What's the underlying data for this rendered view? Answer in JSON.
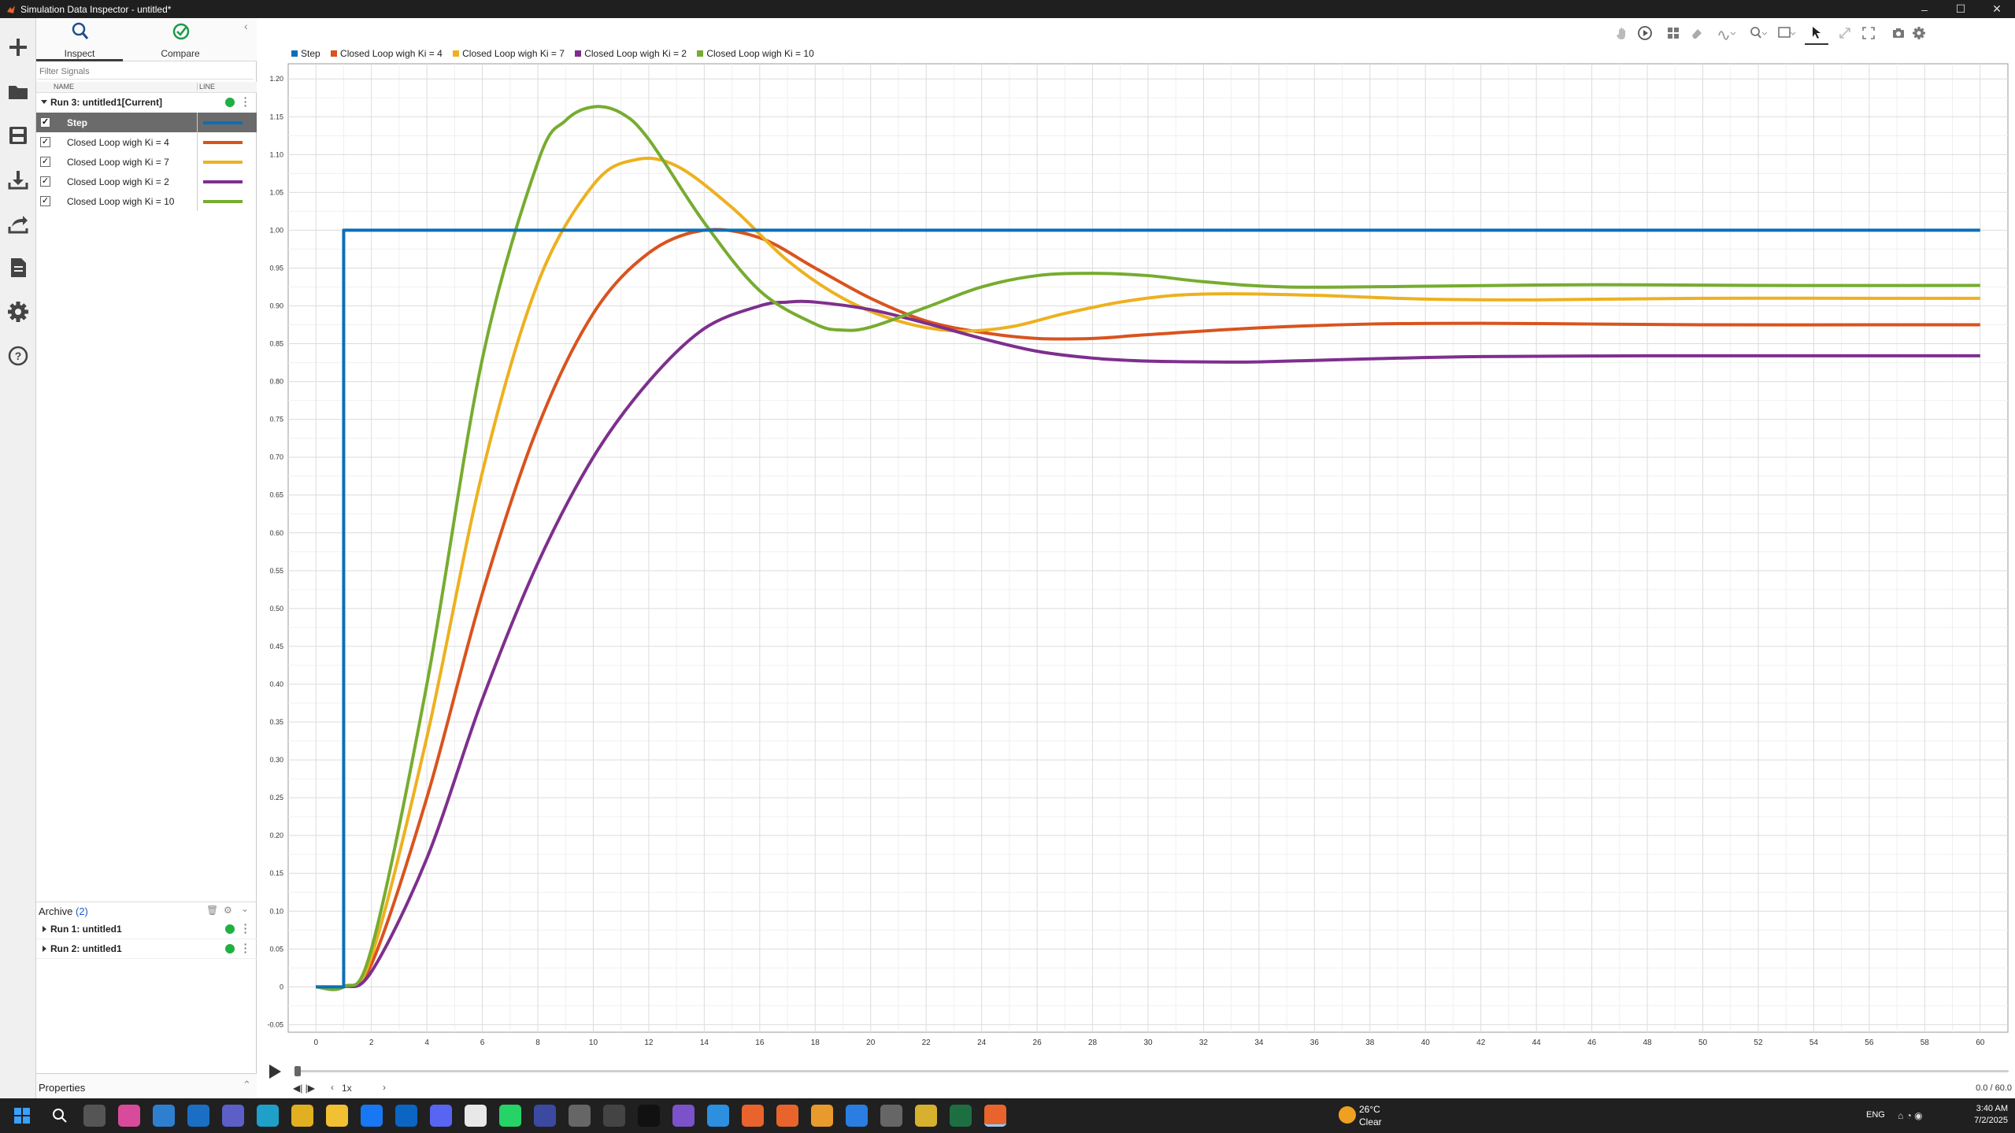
{
  "window": {
    "title": "Simulation Data Inspector - untitled*",
    "controls": [
      "–",
      "☐",
      "✕"
    ]
  },
  "iconbar": [
    "new-icon",
    "open-folder-icon",
    "save-icon",
    "import-icon",
    "export-icon",
    "report-icon",
    "settings-icon",
    "help-icon"
  ],
  "tabs": [
    {
      "label": "Inspect",
      "icon": "search-icon"
    },
    {
      "label": "Compare",
      "icon": "checkmark-circle-icon"
    }
  ],
  "filter_placeholder": "Filter Signals",
  "columns": {
    "name": "NAME",
    "line": "LINE"
  },
  "current_run": {
    "label": "Run 3: untitled1[Current]"
  },
  "signals": [
    {
      "name": "Step",
      "checked": true,
      "color": "#0b6fb8",
      "selected": true
    },
    {
      "name": "Closed Loop wigh Ki = 4",
      "checked": true,
      "color": "#d9531e",
      "selected": false
    },
    {
      "name": "Closed Loop wigh Ki = 7",
      "checked": true,
      "color": "#edb120",
      "selected": false
    },
    {
      "name": "Closed Loop wigh Ki = 2",
      "checked": true,
      "color": "#7e2f8e",
      "selected": false
    },
    {
      "name": "Closed Loop wigh Ki = 10",
      "checked": true,
      "color": "#77ac30",
      "selected": false
    }
  ],
  "archive": {
    "label": "Archive",
    "count": "(2)",
    "runs": [
      "Run 1: untitled1",
      "Run 2: untitled1"
    ]
  },
  "properties_label": "Properties",
  "legend": [
    "Step",
    "Closed Loop wigh Ki = 4",
    "Closed Loop wigh Ki = 7",
    "Closed Loop wigh Ki = 2",
    "Closed Loop wigh Ki = 10"
  ],
  "playback": {
    "speed": "1x",
    "time": "0.0 / 60.0"
  },
  "taskbar": {
    "weather_temp": "26°C",
    "weather_desc": "Clear",
    "language": "ENG",
    "time": "3:40 AM",
    "date": "7/2/2025"
  },
  "chart_data": {
    "type": "line",
    "xlim": [
      -1,
      61
    ],
    "ylim": [
      -0.06,
      1.22
    ],
    "xticks": [
      0,
      2,
      4,
      6,
      8,
      10,
      12,
      14,
      16,
      18,
      20,
      22,
      24,
      26,
      28,
      30,
      32,
      34,
      36,
      38,
      40,
      42,
      44,
      46,
      48,
      50,
      52,
      54,
      56,
      58,
      60
    ],
    "xtick_labels": [
      "0",
      "2",
      "4",
      "6",
      "8",
      "10",
      "12",
      "14",
      "16",
      "18",
      "20",
      "22",
      "24",
      "26",
      "28",
      "30",
      "32",
      "34",
      "36",
      "38",
      "40",
      "42",
      "44",
      "46",
      "48",
      "50",
      "52",
      "54",
      "56",
      "58",
      "60"
    ],
    "yticks": [
      -0.05,
      0,
      0.05,
      0.1,
      0.15,
      0.2,
      0.25,
      0.3,
      0.35,
      0.4,
      0.45,
      0.5,
      0.55,
      0.6,
      0.65,
      0.7,
      0.75,
      0.8,
      0.85,
      0.9,
      0.95,
      1.0,
      1.05,
      1.1,
      1.15,
      1.2
    ],
    "ytick_labels": [
      "-0.05",
      "0",
      "0.05",
      "0.10",
      "0.15",
      "0.20",
      "0.25",
      "0.30",
      "0.35",
      "0.40",
      "0.45",
      "0.50",
      "0.55",
      "0.60",
      "0.65",
      "0.70",
      "0.75",
      "0.80",
      "0.85",
      "0.90",
      "0.95",
      "1.00",
      "1.05",
      "1.10",
      "1.15",
      "1.20"
    ],
    "grid": true,
    "legend_position": "top-left",
    "series": [
      {
        "name": "Step",
        "color": "#0b6fb8",
        "x": [
          0,
          1,
          1,
          60
        ],
        "y": [
          0,
          0,
          1.0,
          1.0
        ]
      },
      {
        "name": "Closed Loop wigh Ki = 4",
        "color": "#d9531e",
        "x": [
          0,
          1,
          2,
          4,
          6,
          8,
          10,
          12,
          14,
          16,
          18,
          20,
          22,
          24,
          26,
          28,
          30,
          34,
          38,
          42,
          46,
          50,
          56,
          60
        ],
        "y": [
          0,
          0,
          0.03,
          0.25,
          0.52,
          0.74,
          0.89,
          0.97,
          1.0,
          0.99,
          0.95,
          0.91,
          0.88,
          0.865,
          0.857,
          0.857,
          0.862,
          0.871,
          0.876,
          0.877,
          0.876,
          0.875,
          0.875,
          0.875
        ]
      },
      {
        "name": "Closed Loop wigh Ki = 7",
        "color": "#edb120",
        "x": [
          0,
          1,
          2,
          4,
          6,
          8,
          10,
          11.5,
          13,
          15,
          17,
          19,
          21,
          23,
          25,
          27,
          29,
          31,
          33,
          36,
          40,
          44,
          50,
          56,
          60
        ],
        "y": [
          0,
          0,
          0.04,
          0.33,
          0.68,
          0.93,
          1.06,
          1.093,
          1.085,
          1.03,
          0.96,
          0.91,
          0.88,
          0.867,
          0.872,
          0.89,
          0.905,
          0.914,
          0.916,
          0.914,
          0.909,
          0.908,
          0.91,
          0.91,
          0.91
        ]
      },
      {
        "name": "Closed Loop wigh Ki = 2",
        "color": "#7e2f8e",
        "x": [
          0,
          1,
          2,
          4,
          6,
          8,
          10,
          12,
          14,
          16,
          17,
          18,
          20,
          22,
          24,
          26,
          28,
          30,
          32,
          34,
          38,
          42,
          48,
          54,
          60
        ],
        "y": [
          0,
          0,
          0.02,
          0.17,
          0.38,
          0.56,
          0.7,
          0.8,
          0.87,
          0.9,
          0.905,
          0.905,
          0.895,
          0.877,
          0.857,
          0.84,
          0.831,
          0.827,
          0.826,
          0.826,
          0.83,
          0.833,
          0.834,
          0.834,
          0.834
        ]
      },
      {
        "name": "Closed Loop wigh Ki = 10",
        "color": "#77ac30",
        "x": [
          0,
          1,
          2,
          4,
          6,
          8,
          9,
          10,
          11,
          12,
          14,
          16,
          18,
          19,
          20,
          22,
          24,
          26,
          28,
          30,
          32,
          35,
          40,
          46,
          52,
          60
        ],
        "y": [
          0,
          0,
          0.05,
          0.4,
          0.83,
          1.09,
          1.145,
          1.163,
          1.155,
          1.12,
          1.01,
          0.92,
          0.876,
          0.868,
          0.872,
          0.898,
          0.925,
          0.94,
          0.943,
          0.94,
          0.932,
          0.925,
          0.926,
          0.928,
          0.927,
          0.927
        ]
      }
    ]
  }
}
